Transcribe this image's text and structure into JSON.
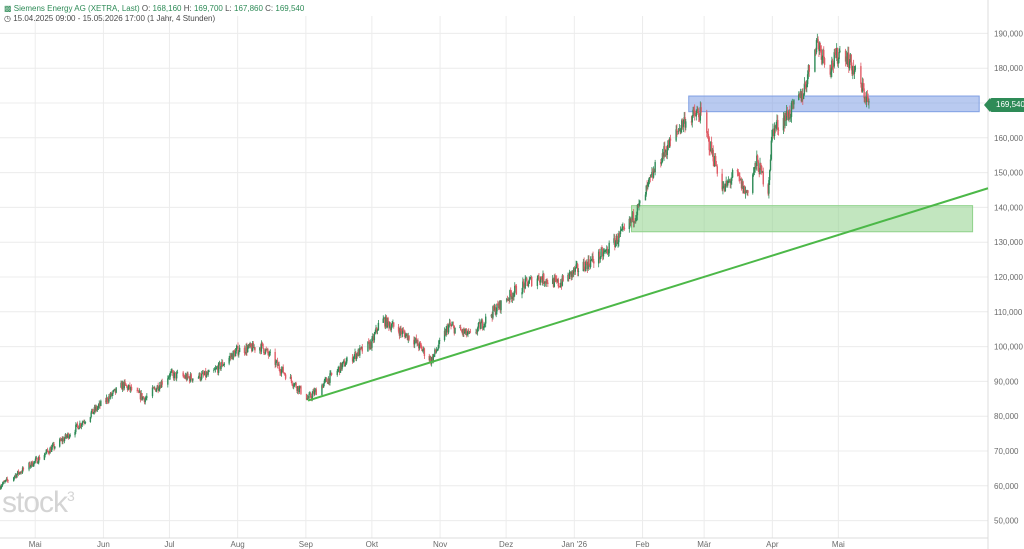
{
  "header": {
    "title": "Siemens Energy AG (XETRA, Last)",
    "o_label": "O:",
    "o_value": "168,160",
    "h_label": "H:",
    "h_value": "169,700",
    "l_label": "L:",
    "l_value": "167,860",
    "c_label": "C:",
    "c_value": "169,540",
    "range": "15.04.2025 09:00 - 15.05.2026 17:00",
    "interval": "(1 Jahr, 4 Stunden)"
  },
  "logo_text": "stock",
  "logo_sup": "3",
  "last_price": "169,540",
  "colors": {
    "up": "#2e8b57",
    "down": "#e05a64",
    "trendline": "#4cb848",
    "resistance_zone": "#7f9fe3",
    "support_zone": "#8fd28a",
    "grid": "#ececec"
  },
  "chart_data": {
    "type": "candlestick",
    "title": "",
    "xlabel": "",
    "ylabel": "",
    "ylim": [
      45000,
      195000
    ],
    "y_ticks": [
      50000,
      60000,
      70000,
      80000,
      90000,
      100000,
      110000,
      120000,
      130000,
      140000,
      150000,
      160000,
      170000,
      180000,
      190000
    ],
    "y_tick_labels": [
      "50,000",
      "60,000",
      "70,000",
      "80,000",
      "90,000",
      "100,000",
      "110,000",
      "120,000",
      "130,000",
      "140,000",
      "150,000",
      "160,000",
      "170,000",
      "180,000",
      "190,000"
    ],
    "x_ticks": [
      {
        "label": "Mai",
        "date": "2025-05-01"
      },
      {
        "label": "Jun",
        "date": "2025-06-01"
      },
      {
        "label": "Jul",
        "date": "2025-07-01"
      },
      {
        "label": "Aug",
        "date": "2025-08-01"
      },
      {
        "label": "Sep",
        "date": "2025-09-01"
      },
      {
        "label": "Okt",
        "date": "2025-10-01"
      },
      {
        "label": "Nov",
        "date": "2025-11-01"
      },
      {
        "label": "Dez",
        "date": "2025-12-01"
      },
      {
        "label": "Jan '26",
        "date": "2026-01-01"
      },
      {
        "label": "Feb",
        "date": "2026-02-01"
      },
      {
        "label": "Mär",
        "date": "2026-03-01"
      },
      {
        "label": "Apr",
        "date": "2026-04-01"
      },
      {
        "label": "Mai",
        "date": "2026-05-01"
      }
    ],
    "x_range": [
      "2025-04-15",
      "2026-07-08"
    ],
    "price_path": [
      {
        "date": "2025-04-15",
        "price": 60000
      },
      {
        "date": "2025-05-01",
        "price": 67000
      },
      {
        "date": "2025-05-15",
        "price": 74000
      },
      {
        "date": "2025-06-01",
        "price": 84000
      },
      {
        "date": "2025-06-10",
        "price": 89000
      },
      {
        "date": "2025-06-20",
        "price": 85000
      },
      {
        "date": "2025-07-01",
        "price": 92000
      },
      {
        "date": "2025-07-10",
        "price": 91000
      },
      {
        "date": "2025-07-20",
        "price": 92000
      },
      {
        "date": "2025-08-01",
        "price": 99000
      },
      {
        "date": "2025-08-12",
        "price": 100000
      },
      {
        "date": "2025-08-20",
        "price": 94000
      },
      {
        "date": "2025-09-02",
        "price": 85000
      },
      {
        "date": "2025-09-20",
        "price": 96000
      },
      {
        "date": "2025-10-01",
        "price": 101000
      },
      {
        "date": "2025-10-05",
        "price": 108000
      },
      {
        "date": "2025-10-20",
        "price": 102000
      },
      {
        "date": "2025-10-28",
        "price": 96000
      },
      {
        "date": "2025-11-05",
        "price": 106000
      },
      {
        "date": "2025-11-15",
        "price": 103000
      },
      {
        "date": "2025-11-25",
        "price": 110000
      },
      {
        "date": "2025-12-05",
        "price": 116000
      },
      {
        "date": "2025-12-15",
        "price": 120000
      },
      {
        "date": "2025-12-25",
        "price": 118000
      },
      {
        "date": "2026-01-02",
        "price": 122000
      },
      {
        "date": "2026-01-15",
        "price": 127000
      },
      {
        "date": "2026-01-25",
        "price": 134000
      },
      {
        "date": "2026-02-01",
        "price": 142000
      },
      {
        "date": "2026-02-08",
        "price": 153000
      },
      {
        "date": "2026-02-20",
        "price": 165000
      },
      {
        "date": "2026-02-27",
        "price": 167000
      },
      {
        "date": "2026-03-05",
        "price": 155000
      },
      {
        "date": "2026-03-10",
        "price": 145000
      },
      {
        "date": "2026-03-15",
        "price": 150000
      },
      {
        "date": "2026-03-20",
        "price": 144000
      },
      {
        "date": "2026-03-25",
        "price": 153000
      },
      {
        "date": "2026-03-30",
        "price": 145000
      },
      {
        "date": "2026-04-01",
        "price": 162000
      },
      {
        "date": "2026-04-10",
        "price": 168000
      },
      {
        "date": "2026-04-15",
        "price": 173000
      },
      {
        "date": "2026-04-21",
        "price": 188000
      },
      {
        "date": "2026-04-27",
        "price": 180000
      },
      {
        "date": "2026-05-03",
        "price": 186000
      },
      {
        "date": "2026-05-09",
        "price": 178000
      },
      {
        "date": "2026-05-15",
        "price": 169540
      }
    ],
    "trendline": {
      "from": {
        "date": "2025-09-02",
        "price": 84500
      },
      "to": {
        "date": "2026-07-08",
        "price": 145500
      }
    },
    "zones": [
      {
        "name": "resistance",
        "from": "2026-02-22",
        "to": "2026-07-04",
        "low": 167500,
        "high": 172000
      },
      {
        "name": "support",
        "from": "2026-01-27",
        "to": "2026-07-01",
        "low": 133000,
        "high": 140500
      }
    ]
  }
}
